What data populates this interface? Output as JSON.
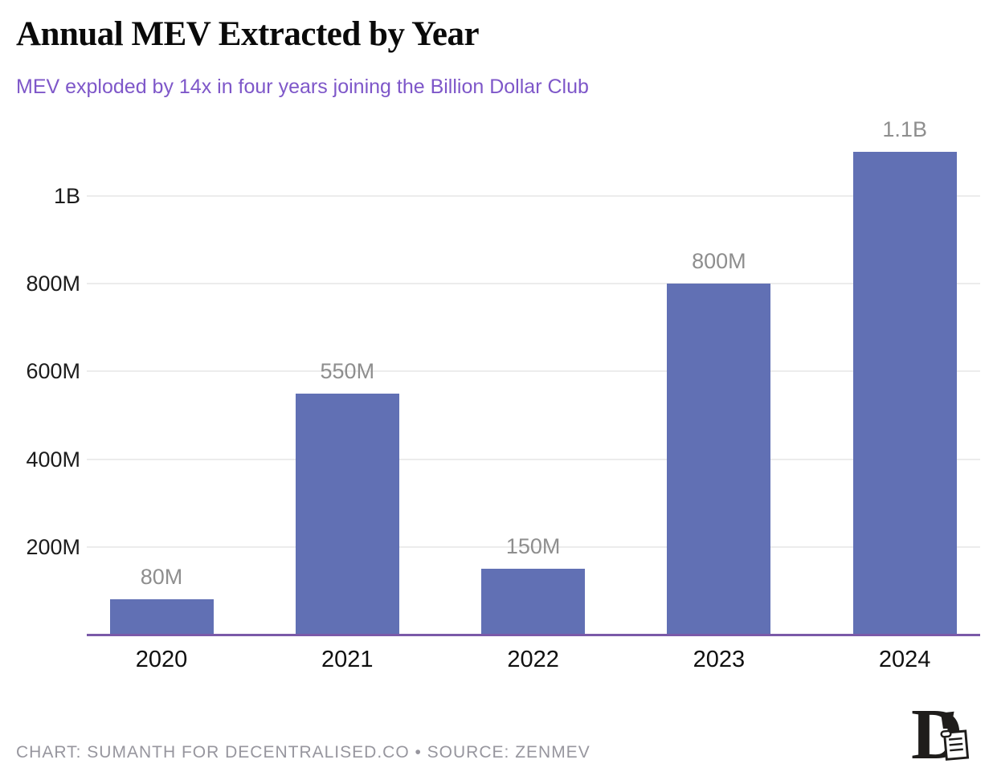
{
  "header": {
    "title": "Annual MEV Extracted by Year",
    "subtitle": "MEV exploded by 14x in four years joining the Billion Dollar Club"
  },
  "chart_data": {
    "type": "bar",
    "title": "Annual MEV Extracted by Year",
    "subtitle": "MEV exploded by 14x in four years joining the Billion Dollar Club",
    "categories": [
      "2020",
      "2021",
      "2022",
      "2023",
      "2024"
    ],
    "values": [
      80,
      550,
      150,
      800,
      1100
    ],
    "unit": "USD (millions)",
    "bar_labels": [
      "80M",
      "550M",
      "150M",
      "800M",
      "1.1B"
    ],
    "y_axis": {
      "ticks": [
        {
          "value": 200,
          "label": "200M"
        },
        {
          "value": 400,
          "label": "400M"
        },
        {
          "value": 600,
          "label": "600M"
        },
        {
          "value": 800,
          "label": "800M"
        },
        {
          "value": 1000,
          "label": "1B"
        }
      ],
      "range": [
        0,
        1130
      ],
      "grid": true
    },
    "legend": "none",
    "colors": {
      "bar": "#6170b4",
      "axis_line": "#7a5aa8",
      "gridline": "#ececec",
      "bar_label": "#8e8e8e",
      "tick_label": "#1c1c1c",
      "title": "#0a0a0a",
      "subtitle": "#7e57c9",
      "footer": "#97969e",
      "logo": "#1f1d1b"
    }
  },
  "footer": {
    "credit_line": "CHART: SUMANTH FOR DECENTRALISED.CO • SOURCE: ZENMEV",
    "logo": "decentralised-logo"
  }
}
